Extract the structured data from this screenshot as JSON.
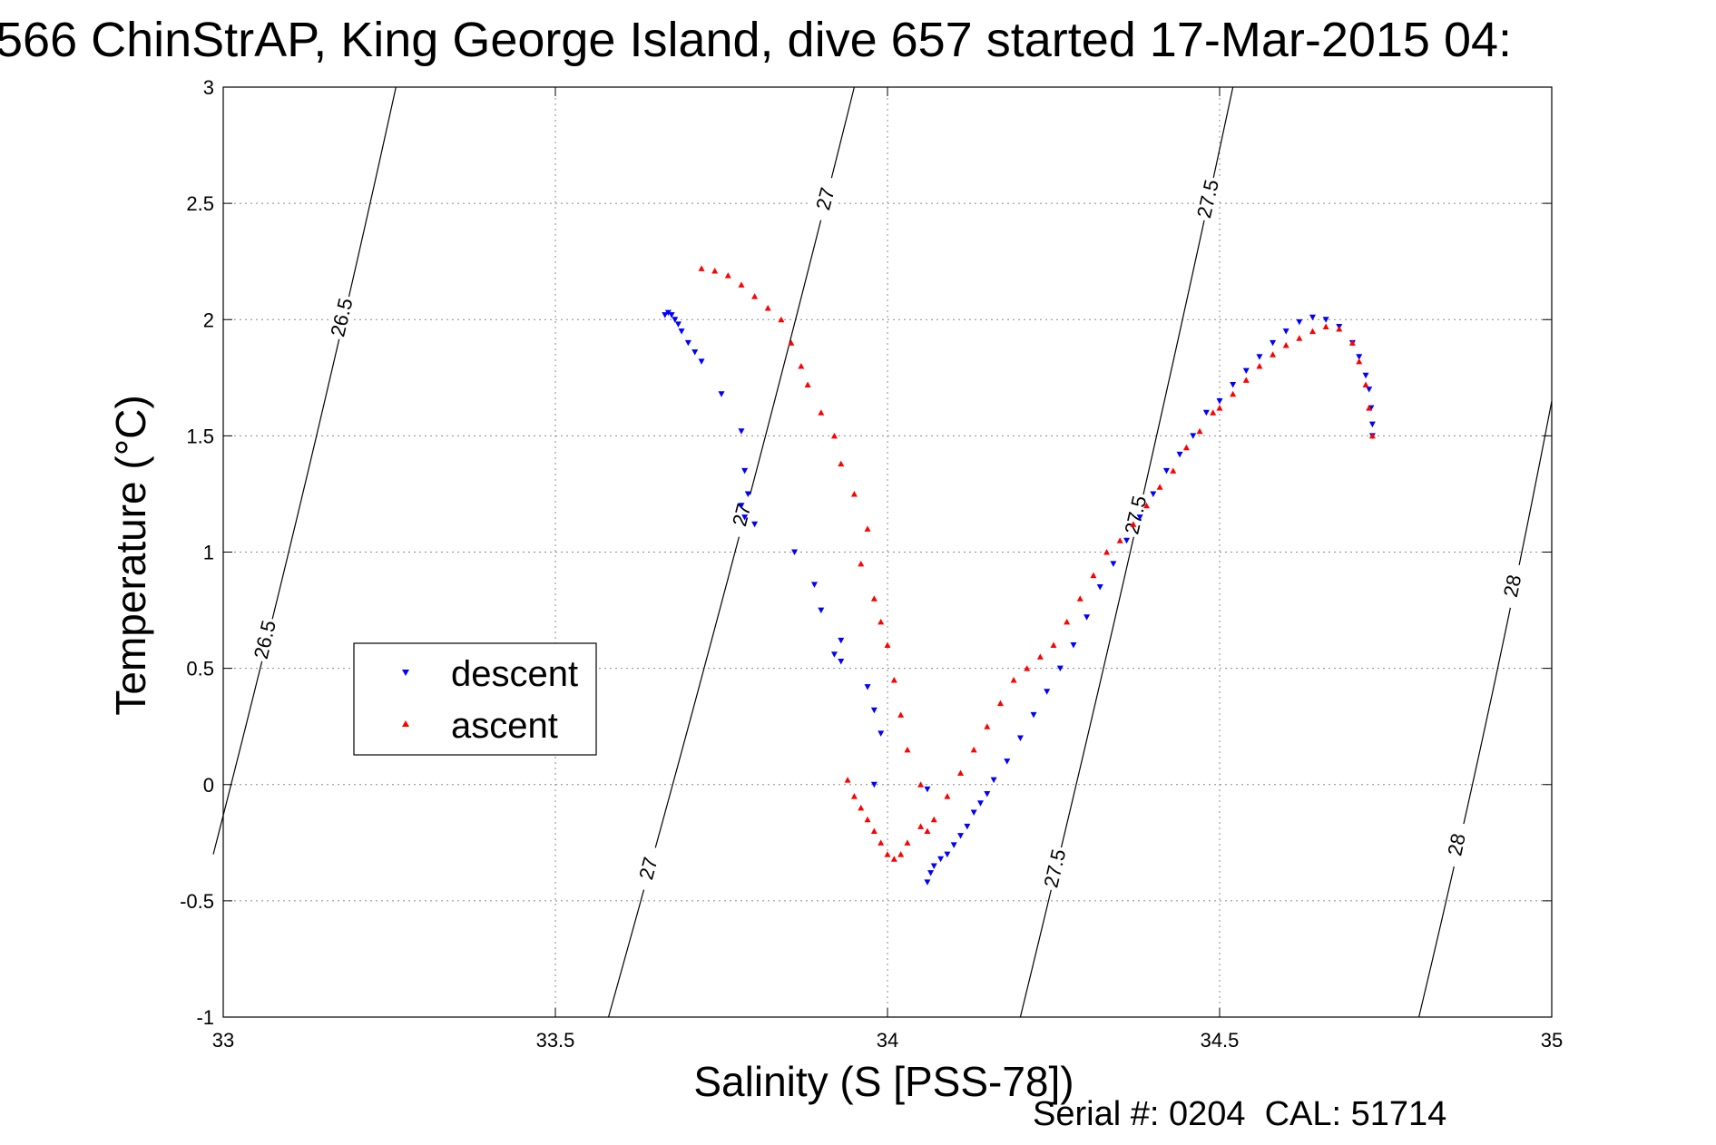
{
  "chart_data": {
    "type": "scatter",
    "title": "566 ChinStrAP, King George Island, dive 657 started 17-Mar-2015 04:",
    "xlabel": "Salinity (S [PSS-78])",
    "ylabel": "Temperature (°C)",
    "xlim": [
      33,
      35
    ],
    "ylim": [
      -1,
      3
    ],
    "xticks": [
      "33",
      "33.5",
      "34",
      "34.5",
      "35"
    ],
    "yticks": [
      "-1",
      "-0.5",
      "0",
      "0.5",
      "1",
      "1.5",
      "2",
      "2.5",
      "3"
    ],
    "grid": true,
    "legend": {
      "position": "middle-left",
      "entries": [
        "descent",
        "ascent"
      ]
    },
    "footer": "Serial #: 0204  CAL: 51714",
    "colors": {
      "descent": "#0000ff",
      "ascent": "#ff0000",
      "contour": "#000000"
    },
    "series": [
      {
        "name": "descent",
        "marker": "triangle-down",
        "color": "#0000ff",
        "x": [
          33.665,
          33.67,
          33.675,
          33.68,
          33.685,
          33.69,
          33.7,
          33.71,
          33.72,
          33.75,
          33.78,
          33.785,
          33.79,
          33.78,
          33.785,
          33.8,
          33.86,
          33.89,
          33.9,
          33.93,
          33.92,
          33.93,
          33.97,
          33.98,
          33.99,
          33.98,
          34.06,
          34.06,
          34.065,
          34.07,
          34.08,
          34.09,
          34.1,
          34.11,
          34.12,
          34.13,
          34.14,
          34.15,
          34.16,
          34.18,
          34.2,
          34.22,
          34.24,
          34.26,
          34.28,
          34.3,
          34.32,
          34.34,
          34.36,
          34.38,
          34.4,
          34.42,
          34.44,
          34.46,
          34.48,
          34.5,
          34.52,
          34.54,
          34.56,
          34.58,
          34.6,
          34.62,
          34.64,
          34.66,
          34.68,
          34.7,
          34.71,
          34.72,
          34.725,
          34.728,
          34.73,
          34.73
        ],
        "y": [
          2.02,
          2.03,
          2.02,
          2.0,
          1.98,
          1.95,
          1.9,
          1.86,
          1.82,
          1.68,
          1.52,
          1.35,
          1.25,
          1.2,
          1.15,
          1.12,
          1.0,
          0.86,
          0.75,
          0.62,
          0.56,
          0.53,
          0.42,
          0.32,
          0.22,
          0.0,
          -0.02,
          -0.42,
          -0.38,
          -0.35,
          -0.32,
          -0.3,
          -0.26,
          -0.22,
          -0.18,
          -0.12,
          -0.08,
          -0.04,
          0.02,
          0.1,
          0.2,
          0.3,
          0.4,
          0.5,
          0.6,
          0.72,
          0.85,
          0.95,
          1.05,
          1.15,
          1.25,
          1.35,
          1.42,
          1.5,
          1.6,
          1.65,
          1.72,
          1.78,
          1.84,
          1.9,
          1.95,
          1.99,
          2.01,
          2.0,
          1.97,
          1.9,
          1.84,
          1.76,
          1.7,
          1.62,
          1.55,
          1.5
        ]
      },
      {
        "name": "ascent",
        "marker": "triangle-up",
        "color": "#ff0000",
        "x": [
          33.72,
          33.74,
          33.76,
          33.78,
          33.8,
          33.82,
          33.84,
          33.855,
          33.87,
          33.88,
          33.9,
          33.92,
          33.93,
          33.95,
          33.97,
          33.96,
          33.98,
          33.99,
          34.0,
          34.01,
          34.02,
          34.03,
          34.05,
          34.06,
          33.94,
          33.95,
          33.96,
          33.97,
          33.98,
          33.99,
          34.0,
          34.01,
          34.02,
          34.03,
          34.05,
          34.07,
          34.09,
          34.11,
          34.13,
          34.15,
          34.17,
          34.19,
          34.21,
          34.23,
          34.25,
          34.27,
          34.29,
          34.31,
          34.33,
          34.35,
          34.37,
          34.39,
          34.41,
          34.43,
          34.45,
          34.47,
          34.49,
          34.5,
          34.52,
          34.54,
          34.56,
          34.58,
          34.6,
          34.62,
          34.64,
          34.66,
          34.68,
          34.7,
          34.71,
          34.72,
          34.725,
          34.73
        ],
        "y": [
          2.22,
          2.21,
          2.19,
          2.15,
          2.1,
          2.05,
          2.0,
          1.9,
          1.8,
          1.72,
          1.6,
          1.5,
          1.38,
          1.25,
          1.1,
          0.95,
          0.8,
          0.7,
          0.6,
          0.45,
          0.3,
          0.15,
          0.0,
          -0.2,
          0.02,
          -0.05,
          -0.1,
          -0.15,
          -0.2,
          -0.25,
          -0.3,
          -0.32,
          -0.3,
          -0.25,
          -0.18,
          -0.15,
          -0.05,
          0.05,
          0.15,
          0.25,
          0.35,
          0.45,
          0.5,
          0.55,
          0.6,
          0.7,
          0.8,
          0.9,
          1.0,
          1.05,
          1.12,
          1.2,
          1.28,
          1.35,
          1.45,
          1.52,
          1.6,
          1.62,
          1.68,
          1.74,
          1.8,
          1.85,
          1.89,
          1.92,
          1.95,
          1.97,
          1.96,
          1.9,
          1.82,
          1.72,
          1.62,
          1.5
        ]
      }
    ],
    "contours": [
      {
        "level": "26.5",
        "labels": [
          "26.5",
          "26.5"
        ],
        "x": [
          32.985,
          33.26
        ],
        "y": [
          -0.3,
          3.0
        ]
      },
      {
        "level": "27",
        "labels": [
          "27",
          "27",
          "27"
        ],
        "x": [
          33.58,
          33.95
        ],
        "y": [
          -1.0,
          3.0
        ]
      },
      {
        "level": "27.5",
        "labels": [
          "27.5",
          "27.5",
          "27.5"
        ],
        "x": [
          34.2,
          34.52
        ],
        "y": [
          -1.0,
          3.0
        ]
      },
      {
        "level": "28",
        "labels": [
          "28",
          "28"
        ],
        "x": [
          34.8,
          35.0
        ],
        "y": [
          -1.0,
          1.65
        ]
      }
    ]
  }
}
